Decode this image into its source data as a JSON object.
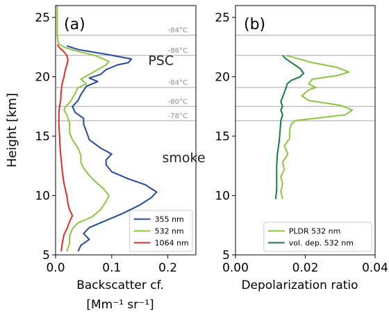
{
  "chart_data": [
    {
      "panel_label": "(a)",
      "type": "line",
      "xlabel": "Backscatter cf.",
      "xlabel_units": "[Mm⁻¹ sr⁻¹]",
      "ylabel": "Height [km]",
      "xlim": [
        0.0,
        0.25
      ],
      "ylim": [
        5,
        26
      ],
      "xticks": [
        "0.0",
        "0.1",
        "0.2"
      ],
      "yticks": [
        "5",
        "10",
        "15",
        "20",
        "25"
      ],
      "legend_position": "lower-right",
      "colors": {
        "355 nm": "#2548a0",
        "532 nm": "#8cc63f",
        "1064 nm": "#e02a26"
      },
      "temperature_lines": [
        {
          "height": 23.5,
          "label": "-84°C"
        },
        {
          "height": 21.8,
          "label": "-86°C"
        },
        {
          "height": 19.1,
          "label": "-84°C"
        },
        {
          "height": 17.5,
          "label": "-80°C"
        },
        {
          "height": 16.3,
          "label": "-78°C"
        }
      ],
      "annotations": [
        {
          "text": "PSC",
          "x": 0.165,
          "y": 21.0
        },
        {
          "text": "smoke",
          "x": 0.19,
          "y": 12.8
        }
      ],
      "series": [
        {
          "name": "355 nm",
          "points": [
            [
              0.04,
              5.3
            ],
            [
              0.045,
              5.8
            ],
            [
              0.06,
              6.3
            ],
            [
              0.05,
              6.8
            ],
            [
              0.06,
              7.3
            ],
            [
              0.09,
              7.9
            ],
            [
              0.12,
              8.5
            ],
            [
              0.15,
              9.2
            ],
            [
              0.17,
              9.8
            ],
            [
              0.18,
              10.3
            ],
            [
              0.16,
              10.9
            ],
            [
              0.13,
              11.4
            ],
            [
              0.1,
              12.0
            ],
            [
              0.09,
              12.6
            ],
            [
              0.09,
              13.0
            ],
            [
              0.1,
              13.5
            ],
            [
              0.08,
              14.0
            ],
            [
              0.06,
              14.7
            ],
            [
              0.055,
              15.4
            ],
            [
              0.05,
              16.0
            ],
            [
              0.05,
              16.5
            ],
            [
              0.035,
              17.0
            ],
            [
              0.03,
              17.5
            ],
            [
              0.04,
              18.0
            ],
            [
              0.045,
              18.5
            ],
            [
              0.055,
              19.2
            ],
            [
              0.075,
              19.6
            ],
            [
              0.06,
              19.9
            ],
            [
              0.08,
              20.2
            ],
            [
              0.09,
              20.6
            ],
            [
              0.11,
              21.0
            ],
            [
              0.13,
              21.2
            ],
            [
              0.135,
              21.5
            ],
            [
              0.09,
              21.9
            ],
            [
              0.04,
              22.3
            ],
            [
              0.02,
              22.6
            ]
          ]
        },
        {
          "name": "532 nm",
          "points": [
            [
              0.02,
              5.3
            ],
            [
              0.025,
              6.0
            ],
            [
              0.025,
              6.6
            ],
            [
              0.03,
              7.2
            ],
            [
              0.04,
              7.7
            ],
            [
              0.065,
              8.2
            ],
            [
              0.08,
              8.8
            ],
            [
              0.09,
              9.5
            ],
            [
              0.095,
              10.0
            ],
            [
              0.085,
              10.6
            ],
            [
              0.07,
              11.2
            ],
            [
              0.06,
              11.7
            ],
            [
              0.05,
              12.3
            ],
            [
              0.045,
              12.8
            ],
            [
              0.045,
              13.4
            ],
            [
              0.04,
              14.0
            ],
            [
              0.03,
              14.7
            ],
            [
              0.025,
              15.3
            ],
            [
              0.025,
              16.1
            ],
            [
              0.02,
              16.8
            ],
            [
              0.015,
              17.2
            ],
            [
              0.018,
              17.5
            ],
            [
              0.025,
              17.8
            ],
            [
              0.03,
              18.2
            ],
            [
              0.035,
              18.6
            ],
            [
              0.04,
              19.1
            ],
            [
              0.055,
              19.4
            ],
            [
              0.045,
              19.8
            ],
            [
              0.06,
              20.2
            ],
            [
              0.075,
              20.6
            ],
            [
              0.09,
              21.0
            ],
            [
              0.095,
              21.3
            ],
            [
              0.07,
              21.8
            ],
            [
              0.035,
              22.2
            ],
            [
              0.015,
              22.5
            ],
            [
              0.005,
              22.8
            ],
            [
              0.003,
              23.5
            ],
            [
              0.003,
              25.0
            ],
            [
              0.003,
              26.0
            ]
          ]
        },
        {
          "name": "1064 nm",
          "points": [
            [
              0.01,
              5.3
            ],
            [
              0.012,
              6.0
            ],
            [
              0.015,
              6.7
            ],
            [
              0.02,
              7.2
            ],
            [
              0.025,
              7.8
            ],
            [
              0.03,
              8.3
            ],
            [
              0.025,
              8.8
            ],
            [
              0.022,
              9.3
            ],
            [
              0.02,
              10.0
            ],
            [
              0.015,
              11.0
            ],
            [
              0.012,
              12.0
            ],
            [
              0.01,
              13.0
            ],
            [
              0.008,
              14.0
            ],
            [
              0.007,
              15.0
            ],
            [
              0.006,
              16.0
            ],
            [
              0.006,
              17.0
            ],
            [
              0.007,
              17.5
            ],
            [
              0.009,
              18.0
            ],
            [
              0.01,
              18.8
            ],
            [
              0.012,
              19.5
            ],
            [
              0.015,
              20.0
            ],
            [
              0.017,
              20.5
            ],
            [
              0.02,
              21.0
            ],
            [
              0.022,
              21.4
            ],
            [
              0.02,
              21.8
            ],
            [
              0.015,
              22.1
            ],
            [
              0.008,
              22.4
            ],
            [
              0.003,
              22.7
            ]
          ]
        }
      ]
    },
    {
      "panel_label": "(b)",
      "type": "line",
      "xlabel": "Depolarization ratio",
      "xlim": [
        0.0,
        0.04
      ],
      "ylim": [
        5,
        26
      ],
      "xticks": [
        "0.00",
        "0.02",
        "0.04"
      ],
      "yticks": [
        "5",
        "10",
        "15",
        "20",
        "25"
      ],
      "legend_position": "lower-right",
      "colors": {
        "PLDR 532 nm": "#8cc63f",
        "vol. dep. 532 nm": "#137d3a"
      },
      "temperature_lines": [
        {
          "height": 23.5
        },
        {
          "height": 21.8
        },
        {
          "height": 19.1
        },
        {
          "height": 17.5
        },
        {
          "height": 16.3
        }
      ],
      "series": [
        {
          "name": "PLDR 532 nm",
          "points": [
            [
              0.0135,
              9.7
            ],
            [
              0.013,
              10.3
            ],
            [
              0.0135,
              11.0
            ],
            [
              0.013,
              11.6
            ],
            [
              0.014,
              12.2
            ],
            [
              0.0135,
              12.8
            ],
            [
              0.015,
              13.5
            ],
            [
              0.014,
              14.2
            ],
            [
              0.0155,
              14.8
            ],
            [
              0.0155,
              15.5
            ],
            [
              0.016,
              16.0
            ],
            [
              0.017,
              16.3
            ],
            [
              0.0315,
              16.8
            ],
            [
              0.0335,
              17.2
            ],
            [
              0.03,
              17.6
            ],
            [
              0.021,
              18.0
            ],
            [
              0.019,
              18.4
            ],
            [
              0.021,
              18.9
            ],
            [
              0.023,
              19.1
            ],
            [
              0.021,
              19.4
            ],
            [
              0.022,
              19.8
            ],
            [
              0.029,
              20.1
            ],
            [
              0.0325,
              20.4
            ],
            [
              0.029,
              20.8
            ],
            [
              0.022,
              21.2
            ],
            [
              0.017,
              21.6
            ],
            [
              0.0145,
              21.8
            ]
          ]
        },
        {
          "name": "vol. dep. 532 nm",
          "points": [
            [
              0.0115,
              9.7
            ],
            [
              0.0118,
              10.5
            ],
            [
              0.0118,
              11.5
            ],
            [
              0.0118,
              12.5
            ],
            [
              0.012,
              13.5
            ],
            [
              0.0125,
              14.5
            ],
            [
              0.0128,
              15.5
            ],
            [
              0.013,
              16.3
            ],
            [
              0.0135,
              16.8
            ],
            [
              0.013,
              17.2
            ],
            [
              0.0135,
              17.5
            ],
            [
              0.013,
              17.9
            ],
            [
              0.0135,
              18.3
            ],
            [
              0.014,
              18.7
            ],
            [
              0.0145,
              19.1
            ],
            [
              0.0148,
              19.4
            ],
            [
              0.016,
              19.7
            ],
            [
              0.0185,
              20.0
            ],
            [
              0.0195,
              20.3
            ],
            [
              0.0185,
              20.7
            ],
            [
              0.0165,
              21.1
            ],
            [
              0.0145,
              21.5
            ],
            [
              0.0135,
              21.8
            ]
          ]
        }
      ]
    }
  ]
}
